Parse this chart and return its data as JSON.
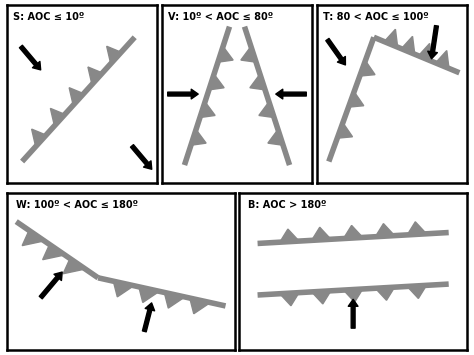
{
  "panels": [
    {
      "label": "S: AOC ≤ 10º",
      "type": "S"
    },
    {
      "label": "V: 10º < AOC ≤ 80º",
      "type": "V"
    },
    {
      "label": "T: 80 < AOC ≤ 100º",
      "type": "T"
    },
    {
      "label": "W: 100º < AOC ≤ 180º",
      "type": "W"
    },
    {
      "label": "B: AOC > 180º",
      "type": "B"
    }
  ],
  "bg_color": "#ffffff",
  "border_color": "#000000",
  "line_color": "#888888",
  "arrow_color": "#000000",
  "label_fontsize": 7.0,
  "line_width": 4.0
}
